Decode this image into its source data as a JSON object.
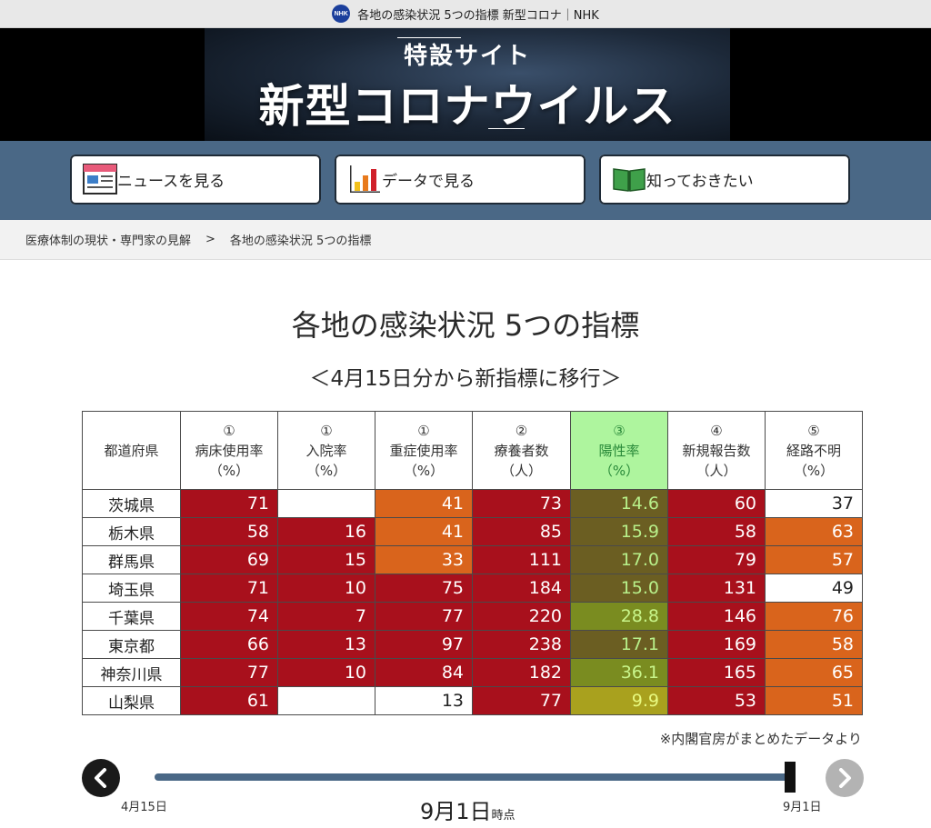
{
  "browser": {
    "tab_title": "各地の感染状況 5つの指標 新型コロナ｜NHK",
    "favicon_text": "NHK"
  },
  "banner": {
    "subtitle": "特設サイト",
    "title": "新型コロナウイルス"
  },
  "nav": [
    {
      "label": "ニュースを見る",
      "icon": "newspaper-icon"
    },
    {
      "label": "データで見る",
      "icon": "bar-chart-icon"
    },
    {
      "label": "知っておきたい",
      "icon": "open-book-icon"
    }
  ],
  "breadcrumb": {
    "parent": "医療体制の現状・専門家の見解",
    "separator": ">",
    "current": "各地の感染状況 5つの指標"
  },
  "page": {
    "title": "各地の感染状況 5つの指標",
    "subtitle": "＜4月15日分から新指標に移行＞"
  },
  "table": {
    "columns": [
      {
        "num": "",
        "name": "都道府県",
        "unit": ""
      },
      {
        "num": "①",
        "name": "病床使用率",
        "unit": "（%）"
      },
      {
        "num": "①",
        "name": "入院率",
        "unit": "（%）"
      },
      {
        "num": "①",
        "name": "重症使用率",
        "unit": "（%）"
      },
      {
        "num": "②",
        "name": "療養者数",
        "unit": "（人）"
      },
      {
        "num": "③",
        "name": "陽性率",
        "unit": "（%）"
      },
      {
        "num": "④",
        "name": "新規報告数",
        "unit": "（人）"
      },
      {
        "num": "⑤",
        "name": "経路不明",
        "unit": "（%）"
      }
    ],
    "rows": [
      {
        "pref": "茨城県",
        "cells": [
          [
            "71",
            "r"
          ],
          [
            "",
            "w"
          ],
          [
            "41",
            "o"
          ],
          [
            "73",
            "r"
          ],
          [
            "14.6",
            "ol"
          ],
          [
            "60",
            "r"
          ],
          [
            "37",
            "w"
          ]
        ]
      },
      {
        "pref": "栃木県",
        "cells": [
          [
            "58",
            "r"
          ],
          [
            "16",
            "r"
          ],
          [
            "41",
            "o"
          ],
          [
            "85",
            "r"
          ],
          [
            "15.9",
            "ol"
          ],
          [
            "58",
            "r"
          ],
          [
            "63",
            "o"
          ]
        ]
      },
      {
        "pref": "群馬県",
        "cells": [
          [
            "69",
            "r"
          ],
          [
            "15",
            "r"
          ],
          [
            "33",
            "o"
          ],
          [
            "111",
            "r"
          ],
          [
            "17.0",
            "ol"
          ],
          [
            "79",
            "r"
          ],
          [
            "57",
            "o"
          ]
        ]
      },
      {
        "pref": "埼玉県",
        "cells": [
          [
            "71",
            "r"
          ],
          [
            "10",
            "r"
          ],
          [
            "75",
            "r"
          ],
          [
            "184",
            "r"
          ],
          [
            "15.0",
            "ol"
          ],
          [
            "131",
            "r"
          ],
          [
            "49",
            "w"
          ]
        ]
      },
      {
        "pref": "千葉県",
        "cells": [
          [
            "74",
            "r"
          ],
          [
            "7",
            "r"
          ],
          [
            "77",
            "r"
          ],
          [
            "220",
            "r"
          ],
          [
            "28.8",
            "ov"
          ],
          [
            "146",
            "r"
          ],
          [
            "76",
            "o"
          ]
        ]
      },
      {
        "pref": "東京都",
        "cells": [
          [
            "66",
            "r"
          ],
          [
            "13",
            "r"
          ],
          [
            "97",
            "r"
          ],
          [
            "238",
            "r"
          ],
          [
            "17.1",
            "ol"
          ],
          [
            "169",
            "r"
          ],
          [
            "58",
            "o"
          ]
        ]
      },
      {
        "pref": "神奈川県",
        "cells": [
          [
            "77",
            "r"
          ],
          [
            "10",
            "r"
          ],
          [
            "84",
            "r"
          ],
          [
            "182",
            "r"
          ],
          [
            "36.1",
            "ov"
          ],
          [
            "165",
            "r"
          ],
          [
            "65",
            "o"
          ]
        ]
      },
      {
        "pref": "山梨県",
        "cells": [
          [
            "61",
            "r"
          ],
          [
            "",
            "w"
          ],
          [
            "13",
            "w"
          ],
          [
            "77",
            "r"
          ],
          [
            "9.9",
            "og"
          ],
          [
            "53",
            "r"
          ],
          [
            "51",
            "o"
          ]
        ]
      }
    ],
    "colors": {
      "red": "#a8101c",
      "orange": "#d9641c",
      "positivity_header": "#aef59e"
    }
  },
  "source_note": "※内閣官房がまとめたデータより",
  "timeline": {
    "start_label": "4月15日",
    "end_label": "9月1日",
    "current_date": "9月1日",
    "current_suffix": "時点",
    "progress": 1.0
  }
}
